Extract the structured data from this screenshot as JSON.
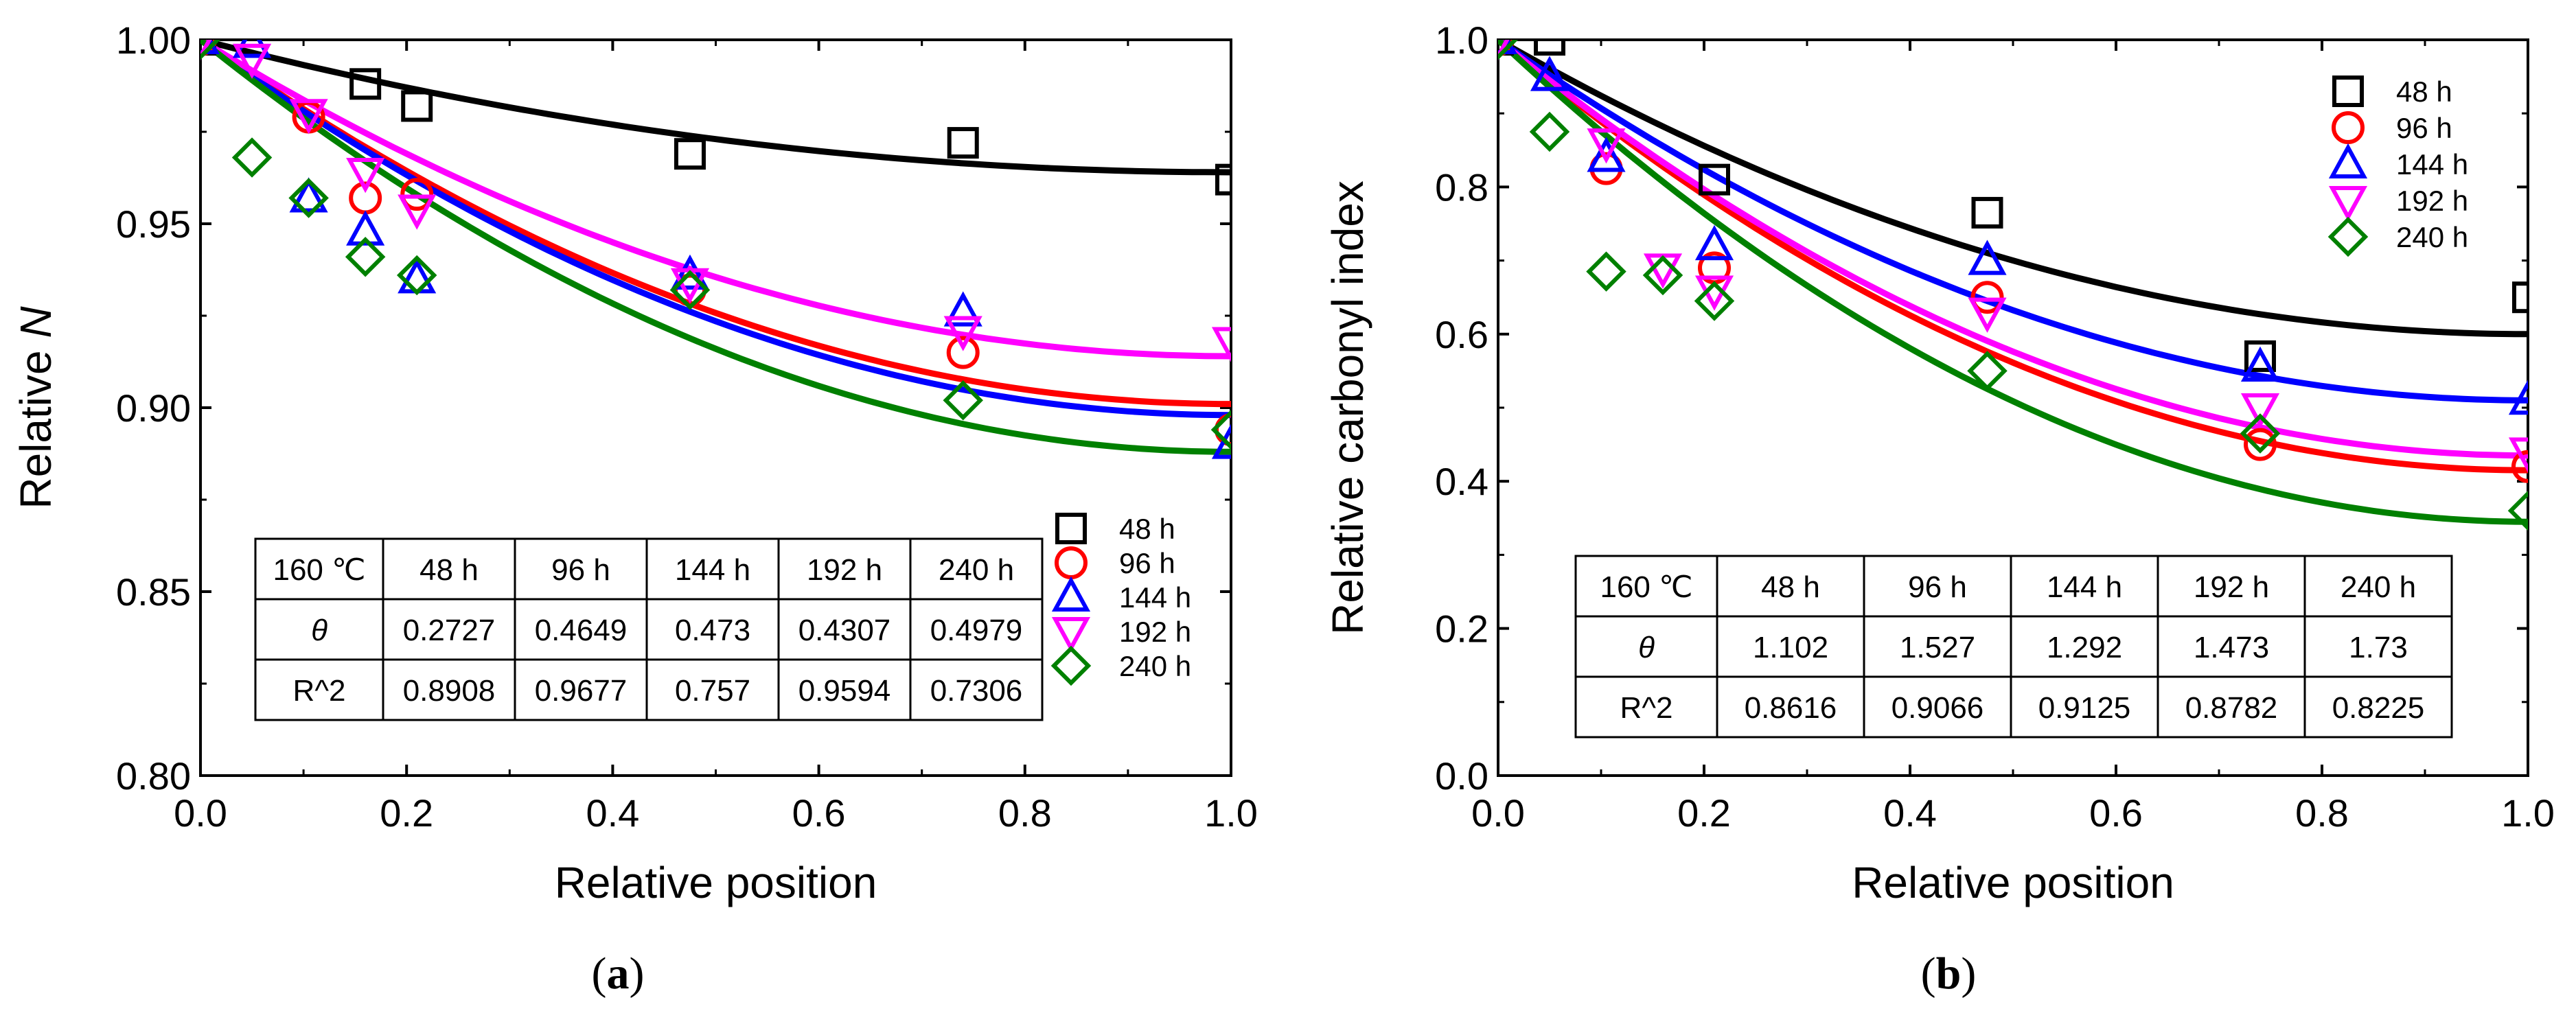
{
  "chart_data": [
    {
      "type": "scatter",
      "panel": "(a)",
      "panel_letter": "a",
      "xlabel": "Relative position",
      "ylabel_prefix": "Relative ",
      "ylabel_italic": "N",
      "xlim": [
        0.0,
        1.0
      ],
      "ylim": [
        0.8,
        1.0
      ],
      "x_ticks": [
        "0.0",
        "0.2",
        "0.4",
        "0.6",
        "0.8",
        "1.0"
      ],
      "y_ticks": [
        "0.80",
        "0.85",
        "0.90",
        "0.95",
        "1.00"
      ],
      "legend_position": "bottom-right",
      "series": [
        {
          "name": "48 h",
          "color": "#000000",
          "marker": "square",
          "x": [
            0.0,
            0.16,
            0.21,
            0.475,
            0.74,
            1.0
          ],
          "y": [
            1.0,
            0.988,
            0.982,
            0.969,
            0.972,
            0.962
          ],
          "fit_end": 0.964
        },
        {
          "name": "96 h",
          "color": "#ff0000",
          "marker": "circle",
          "x": [
            0.0,
            0.105,
            0.16,
            0.21,
            0.475,
            0.74,
            1.0
          ],
          "y": [
            1.0,
            0.979,
            0.957,
            0.958,
            0.932,
            0.915,
            0.894
          ],
          "fit_end": 0.901
        },
        {
          "name": "144 h",
          "color": "#0000ff",
          "marker": "triangle-up",
          "x": [
            0.0,
            0.05,
            0.105,
            0.16,
            0.21,
            0.475,
            0.74,
            1.0
          ],
          "y": [
            1.0,
            0.999,
            0.957,
            0.948,
            0.935,
            0.936,
            0.926,
            0.89
          ],
          "fit_end": 0.898
        },
        {
          "name": "192 h",
          "color": "#ff00ff",
          "marker": "triangle-down",
          "x": [
            0.0,
            0.05,
            0.105,
            0.16,
            0.21,
            0.475,
            0.74,
            1.0
          ],
          "y": [
            1.0,
            0.995,
            0.98,
            0.964,
            0.954,
            0.934,
            0.921,
            0.918
          ],
          "fit_end": 0.914
        },
        {
          "name": "240 h",
          "color": "#008000",
          "marker": "diamond",
          "x": [
            0.0,
            0.05,
            0.105,
            0.16,
            0.21,
            0.475,
            0.74,
            1.0
          ],
          "y": [
            1.0,
            0.968,
            0.957,
            0.941,
            0.936,
            0.932,
            0.902,
            0.894
          ],
          "fit_end": 0.888
        }
      ],
      "table": {
        "header": [
          "160 ℃",
          "48 h",
          "96 h",
          "144 h",
          "192 h",
          "240 h"
        ],
        "rows": [
          [
            "θ",
            "0.2727",
            "0.4649",
            "0.473",
            "0.4307",
            "0.4979"
          ],
          [
            "R^2",
            "0.8908",
            "0.9677",
            "0.757",
            "0.9594",
            "0.7306"
          ]
        ]
      }
    },
    {
      "type": "scatter",
      "panel": "(b)",
      "panel_letter": "b",
      "xlabel": "Relative position",
      "ylabel_prefix": "Relative carbonyl index",
      "ylabel_italic": "",
      "xlim": [
        0.0,
        1.0
      ],
      "ylim": [
        0.0,
        1.0
      ],
      "x_ticks": [
        "0.0",
        "0.2",
        "0.4",
        "0.6",
        "0.8",
        "1.0"
      ],
      "y_ticks": [
        "0.0",
        "0.2",
        "0.4",
        "0.6",
        "0.8",
        "1.0"
      ],
      "legend_position": "top-right",
      "series": [
        {
          "name": "48 h",
          "color": "#000000",
          "marker": "square",
          "x": [
            0.0,
            0.05,
            0.21,
            0.475,
            0.74,
            1.0
          ],
          "y": [
            1.0,
            1.0,
            0.81,
            0.765,
            0.57,
            0.65
          ],
          "fit_end": 0.6
        },
        {
          "name": "96 h",
          "color": "#ff0000",
          "marker": "circle",
          "x": [
            0.0,
            0.105,
            0.21,
            0.475,
            0.74,
            1.0
          ],
          "y": [
            1.0,
            0.825,
            0.69,
            0.65,
            0.45,
            0.42
          ],
          "fit_end": 0.415
        },
        {
          "name": "144 h",
          "color": "#0000ff",
          "marker": "triangle-up",
          "x": [
            0.0,
            0.05,
            0.105,
            0.21,
            0.475,
            0.74,
            1.0
          ],
          "y": [
            1.0,
            0.95,
            0.84,
            0.72,
            0.7,
            0.555,
            0.51
          ],
          "fit_end": 0.51
        },
        {
          "name": "192 h",
          "color": "#ff00ff",
          "marker": "triangle-down",
          "x": [
            0.0,
            0.105,
            0.16,
            0.21,
            0.475,
            0.74,
            1.0
          ],
          "y": [
            1.0,
            0.86,
            0.69,
            0.66,
            0.63,
            0.5,
            0.44
          ],
          "fit_end": 0.435
        },
        {
          "name": "240 h",
          "color": "#008000",
          "marker": "diamond",
          "x": [
            0.0,
            0.05,
            0.105,
            0.16,
            0.21,
            0.475,
            0.74,
            1.0
          ],
          "y": [
            1.0,
            0.875,
            0.685,
            0.68,
            0.645,
            0.55,
            0.465,
            0.36
          ],
          "fit_end": 0.345
        }
      ],
      "table": {
        "header": [
          "160 ℃",
          "48 h",
          "96 h",
          "144 h",
          "192 h",
          "240 h"
        ],
        "rows": [
          [
            "θ",
            "1.102",
            "1.527",
            "1.292",
            "1.473",
            "1.73"
          ],
          [
            "R^2",
            "0.8616",
            "0.9066",
            "0.9125",
            "0.8782",
            "0.8225"
          ]
        ]
      }
    }
  ]
}
